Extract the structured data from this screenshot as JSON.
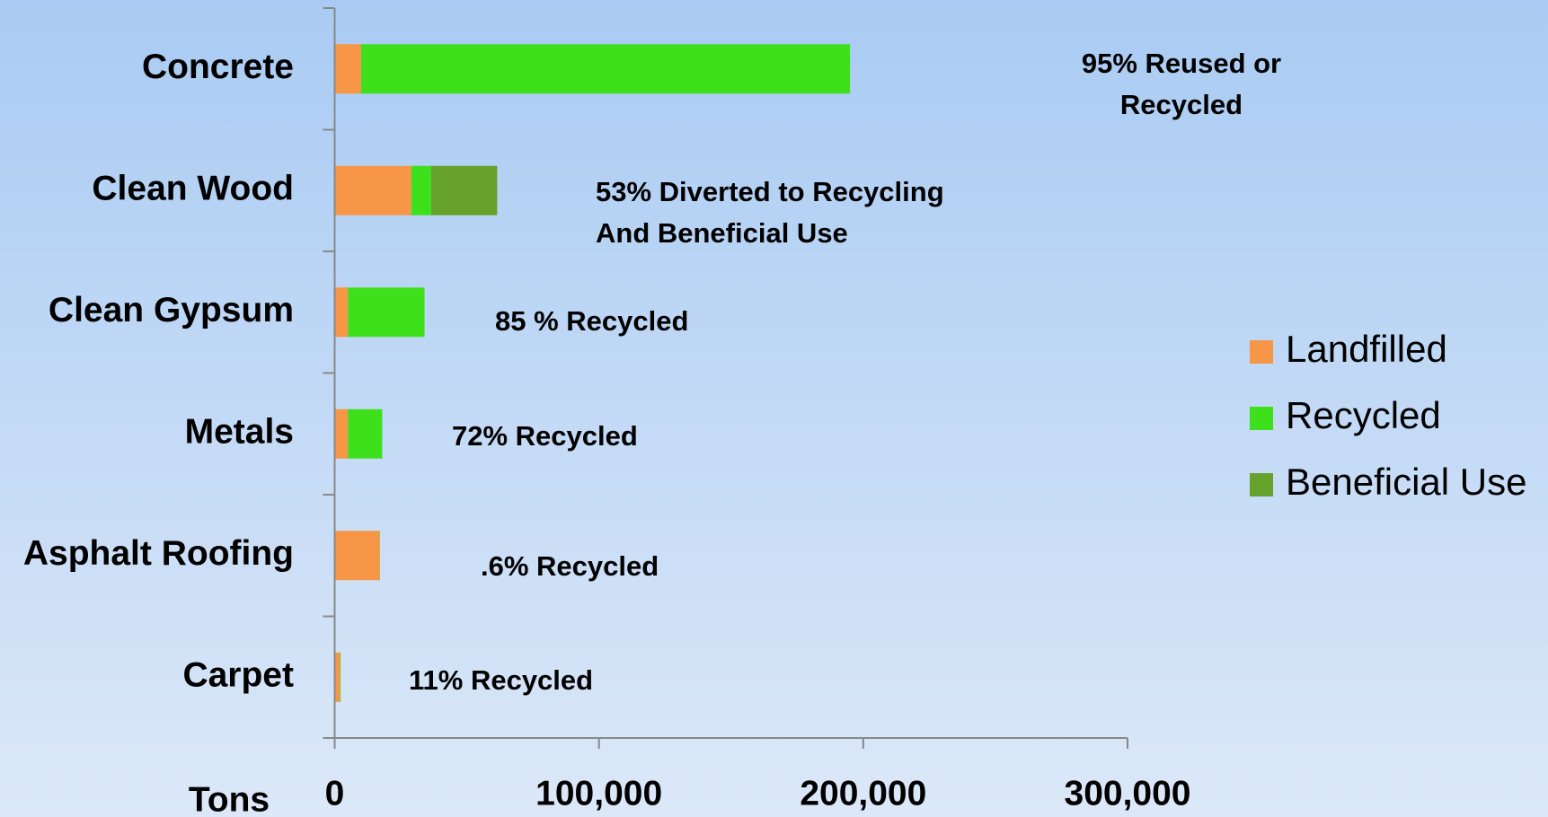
{
  "chart_data": {
    "type": "stacked-bar-horizontal",
    "categories": [
      "Concrete",
      "Clean Wood",
      "Clean Gypsum",
      "Metals",
      "Asphalt Roofing",
      "Carpet"
    ],
    "series": [
      {
        "name": "Landfilled",
        "color": "#f79646",
        "values": [
          10000,
          29000,
          5000,
          5000,
          17000,
          2000
        ]
      },
      {
        "name": "Recycled",
        "color": "#3ee01c",
        "values": [
          185000,
          7500,
          29000,
          13000,
          100,
          250
        ]
      },
      {
        "name": "Beneficial Use",
        "color": "#66a22c",
        "values": [
          0,
          25000,
          0,
          0,
          0,
          0
        ]
      }
    ],
    "xlim": [
      0,
      300000
    ],
    "xticks": [
      0,
      {
        "value": 100000,
        "label": "100,000"
      },
      {
        "value": 200000,
        "label": "200,000"
      },
      {
        "value": 300000,
        "label": "300,000"
      }
    ],
    "xlabel": "Tons",
    "annotations": [
      [
        "95% Reused or",
        "Recycled"
      ],
      [
        "53% Diverted to Recycling",
        "And Beneficial Use"
      ],
      [
        "85 % Recycled"
      ],
      [
        "72% Recycled"
      ],
      [
        ".6% Recycled"
      ],
      [
        "11% Recycled"
      ]
    ],
    "legend": "right"
  }
}
